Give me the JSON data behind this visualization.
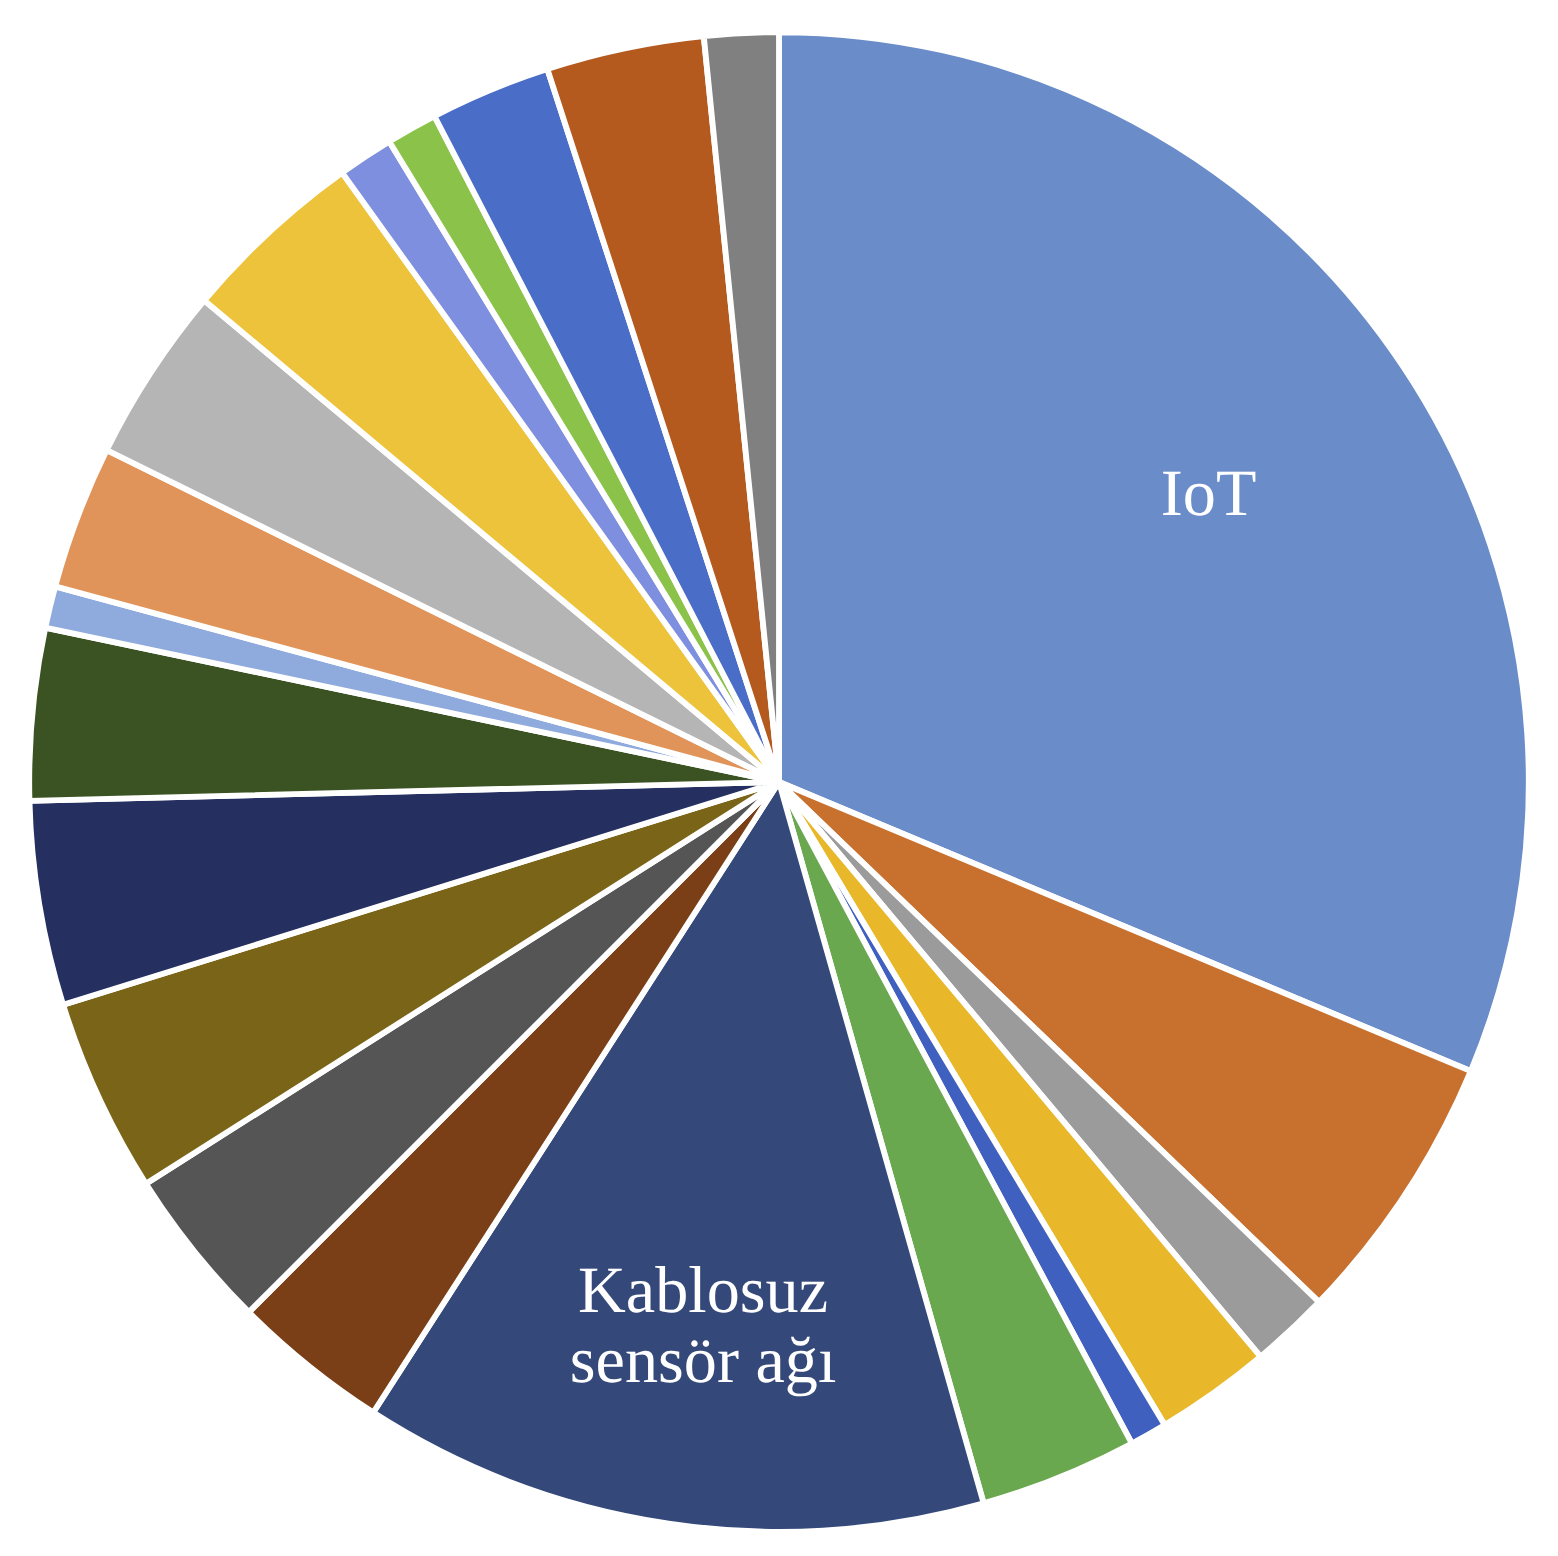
{
  "chart_data": {
    "type": "pie",
    "categories": [
      "IoT",
      null,
      null,
      null,
      null,
      null,
      "Kablosuz sensör ağı",
      null,
      null,
      null,
      null,
      null,
      null,
      null,
      null,
      null,
      null,
      null,
      null,
      null,
      null
    ],
    "values": [
      31.3,
      5.9,
      1.7,
      2.5,
      0.8,
      3.4,
      13.5,
      3.4,
      3.5,
      4.2,
      4.4,
      3.7,
      0.9,
      3.1,
      3.8,
      4.0,
      1.2,
      1.1,
      2.6,
      3.4,
      1.6
    ],
    "colors": [
      "#6a8cc8",
      "#c8712e",
      "#9b9b9b",
      "#e8b82a",
      "#4060c0",
      "#6aa84f",
      "#34497a",
      "#7a3f17",
      "#555555",
      "#7a6418",
      "#253060",
      "#3b5323",
      "#8faadc",
      "#e0945a",
      "#b5b5b5",
      "#ecc33a",
      "#7f8fe0",
      "#8bc34a",
      "#4a6ec8",
      "#b45a1e",
      "#808080"
    ]
  }
}
